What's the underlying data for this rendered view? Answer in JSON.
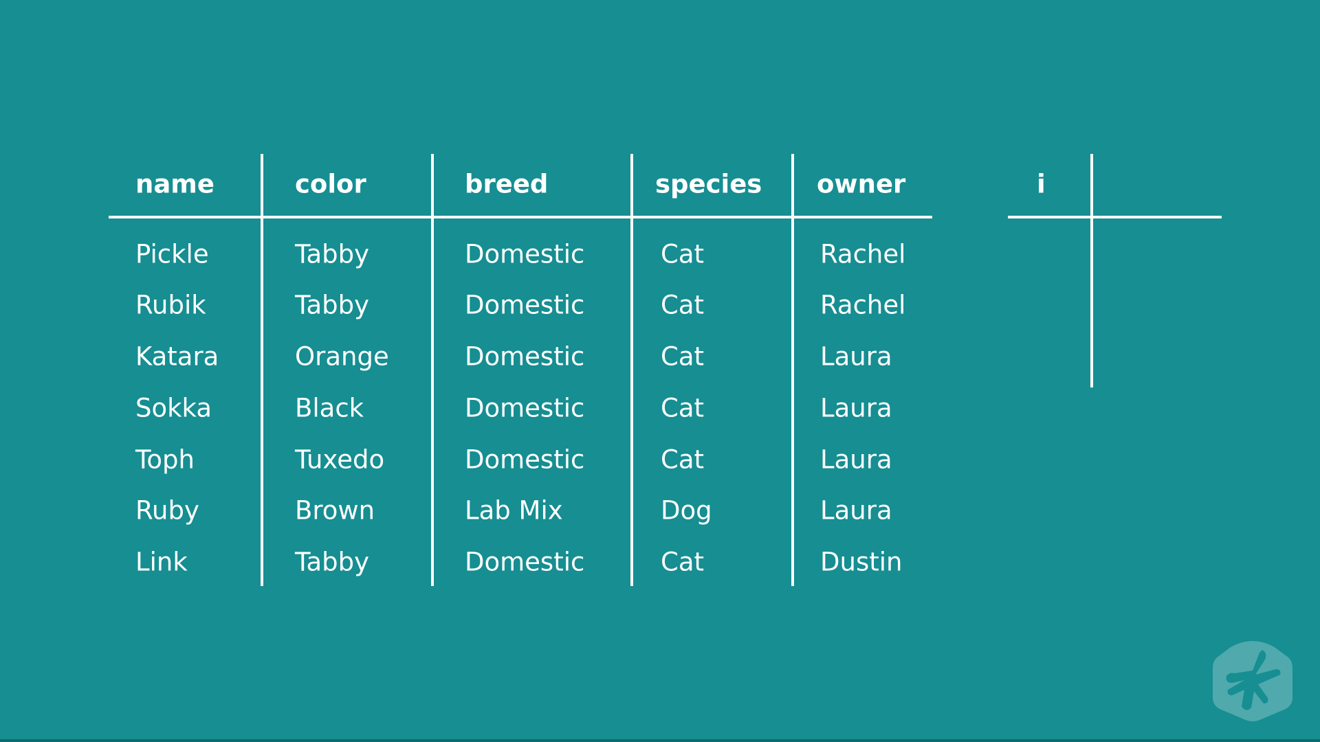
{
  "table": {
    "headers": [
      "name",
      "color",
      "breed",
      "species",
      "owner"
    ],
    "rows": [
      [
        "Pickle",
        "Tabby",
        "Domestic",
        "Cat",
        "Rachel"
      ],
      [
        "Rubik",
        "Tabby",
        "Domestic",
        "Cat",
        "Rachel"
      ],
      [
        "Katara",
        "Orange",
        "Domestic",
        "Cat",
        "Laura"
      ],
      [
        "Sokka",
        "Black",
        "Domestic",
        "Cat",
        "Laura"
      ],
      [
        "Toph",
        "Tuxedo",
        "Domestic",
        "Cat",
        "Laura"
      ],
      [
        "Ruby",
        "Brown",
        "Lab Mix",
        "Dog",
        "Laura"
      ],
      [
        "Link",
        "Tabby",
        "Domestic",
        "Cat",
        "Dustin"
      ]
    ]
  },
  "index_table": {
    "header": "i"
  },
  "logo": {
    "icon": "treehouse-frog-hand-logo"
  },
  "colors": {
    "background": "#168e92",
    "lines": "#ffffff",
    "logo": "#4fa9ad"
  }
}
